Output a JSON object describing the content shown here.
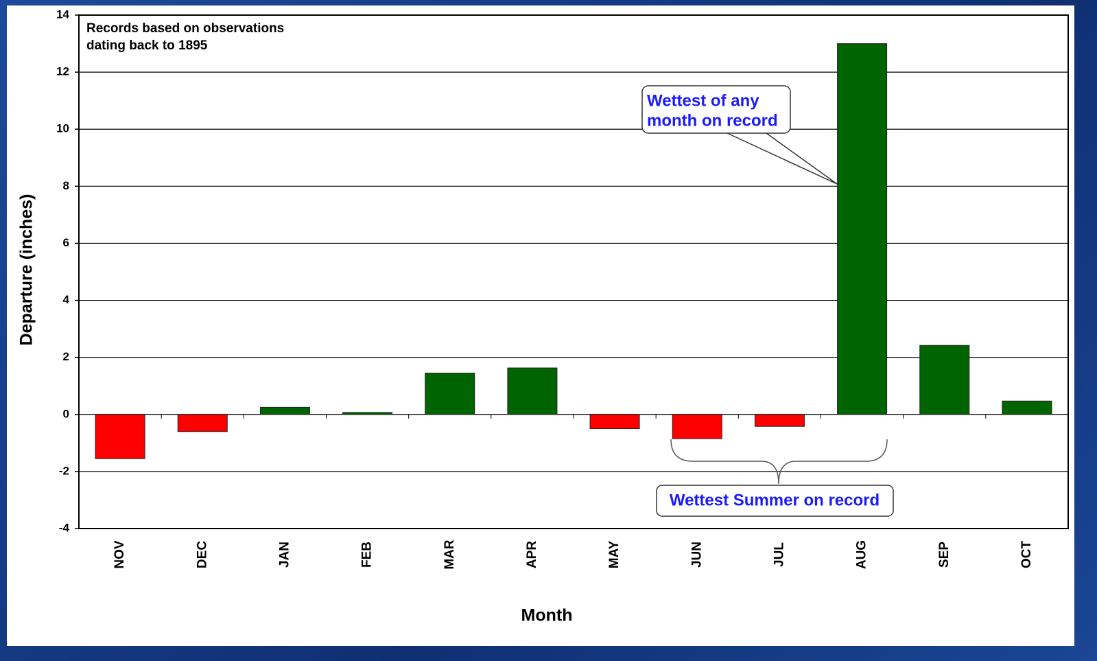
{
  "chart_data": {
    "type": "bar",
    "y_label": "Departure (inches)",
    "x_label": "Month",
    "categories": [
      "NOV",
      "DEC",
      "JAN",
      "FEB",
      "MAR",
      "APR",
      "MAY",
      "JUN",
      "JUL",
      "AUG",
      "SEP",
      "OCT"
    ],
    "values": [
      -1.55,
      -0.6,
      0.25,
      0.07,
      1.45,
      1.63,
      -0.5,
      -0.85,
      -0.42,
      13.0,
      2.42,
      0.47
    ],
    "positive_color": "#006400",
    "negative_color": "#ff0000",
    "ylim": [
      -4,
      14
    ],
    "yticks": [
      -4,
      -2,
      0,
      2,
      4,
      6,
      8,
      10,
      12,
      14
    ],
    "grid": true,
    "annotations": {
      "note": [
        "Records based on observations",
        "dating back to 1895"
      ],
      "month_callout": [
        "Wettest of any",
        "month on record"
      ],
      "summer_callout": [
        "Wettest Summer on record"
      ]
    }
  }
}
